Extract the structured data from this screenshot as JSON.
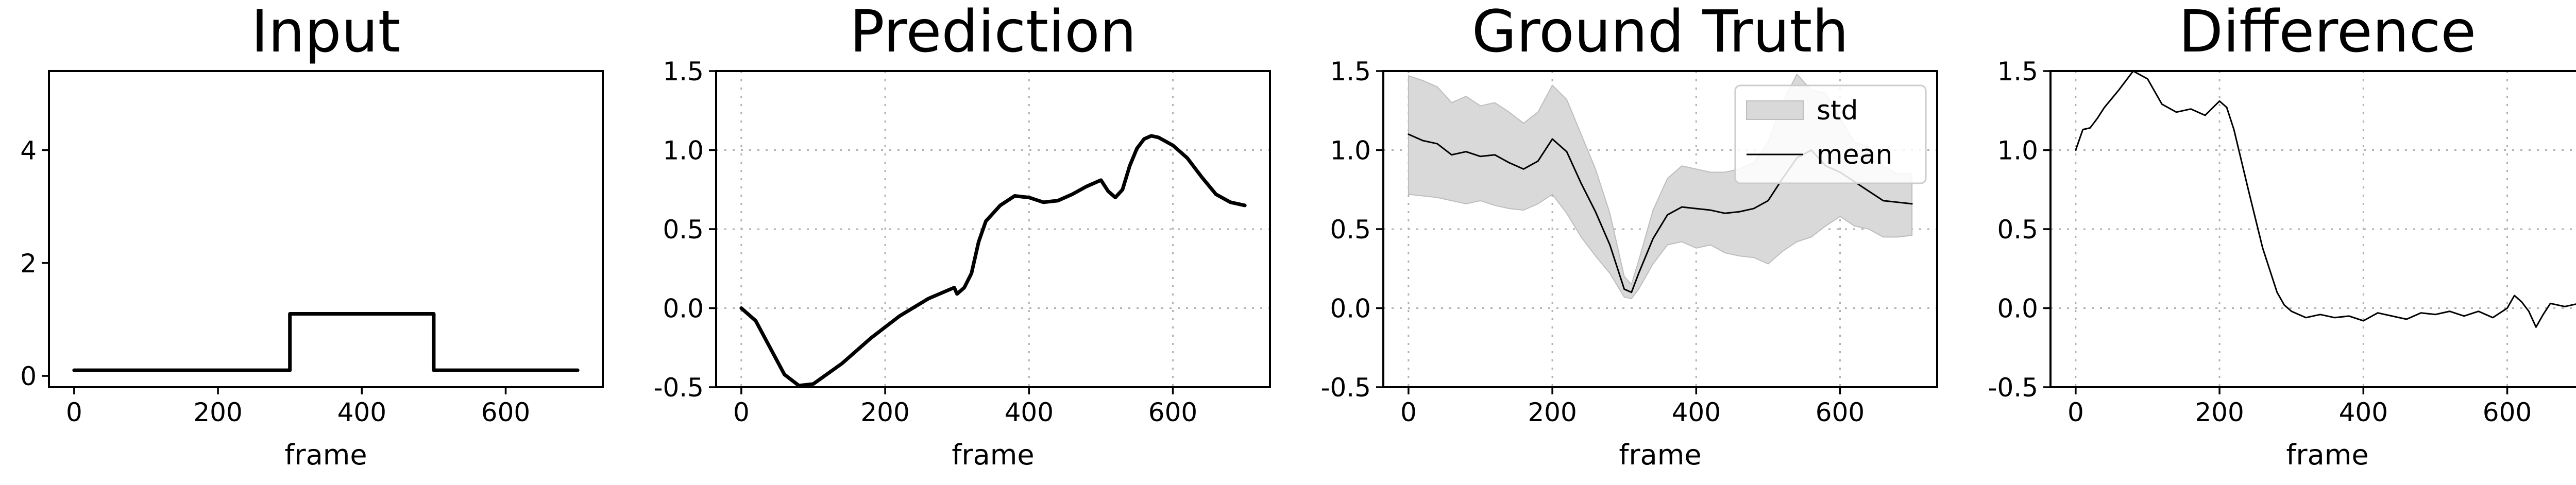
{
  "chart_data": [
    {
      "type": "line",
      "title": "Input",
      "xlabel": "frame",
      "xlim": [
        -35,
        735
      ],
      "ylim": [
        -0.2,
        5.4
      ],
      "xticks": [
        0,
        200,
        400,
        600
      ],
      "yticks": [
        0,
        2,
        4
      ],
      "grid": false,
      "series": [
        {
          "style": "thick",
          "x": [
            0,
            300,
            300,
            500,
            500,
            700
          ],
          "y": [
            0.1,
            0.1,
            1.1,
            1.1,
            0.1,
            0.1
          ]
        }
      ]
    },
    {
      "type": "line",
      "title": "Prediction",
      "xlabel": "frame",
      "xlim": [
        -35,
        735
      ],
      "ylim": [
        -0.5,
        1.5
      ],
      "xticks": [
        0,
        200,
        400,
        600
      ],
      "yticks": [
        -0.5,
        0.0,
        0.5,
        1.0,
        1.5
      ],
      "grid": true,
      "series": [
        {
          "style": "thick",
          "x": [
            0,
            20,
            40,
            60,
            80,
            100,
            140,
            180,
            220,
            260,
            296,
            300,
            310,
            320,
            330,
            340,
            360,
            380,
            400,
            420,
            440,
            460,
            480,
            500,
            510,
            520,
            530,
            540,
            550,
            560,
            570,
            580,
            600,
            620,
            640,
            660,
            680,
            700
          ],
          "y": [
            0.0,
            -0.08,
            -0.25,
            -0.42,
            -0.49,
            -0.48,
            -0.35,
            -0.19,
            -0.05,
            0.06,
            0.13,
            0.09,
            0.13,
            0.22,
            0.42,
            0.55,
            0.65,
            0.71,
            0.7,
            0.67,
            0.68,
            0.72,
            0.77,
            0.81,
            0.74,
            0.7,
            0.75,
            0.9,
            1.01,
            1.07,
            1.09,
            1.08,
            1.03,
            0.95,
            0.83,
            0.72,
            0.67,
            0.65
          ]
        }
      ]
    },
    {
      "type": "area",
      "title": "Ground Truth",
      "xlabel": "frame",
      "xlim": [
        -35,
        735
      ],
      "ylim": [
        -0.5,
        1.5
      ],
      "xticks": [
        0,
        200,
        400,
        600
      ],
      "yticks": [
        -0.5,
        0.0,
        0.5,
        1.0,
        1.5
      ],
      "grid": true,
      "legend_position": "top-right",
      "x": [
        0,
        20,
        40,
        60,
        80,
        100,
        120,
        140,
        160,
        180,
        200,
        220,
        240,
        260,
        280,
        300,
        310,
        320,
        340,
        360,
        380,
        400,
        420,
        440,
        460,
        480,
        500,
        520,
        540,
        560,
        580,
        600,
        620,
        640,
        660,
        680,
        700
      ],
      "series": [
        {
          "name": "std",
          "kind": "band",
          "color": "#d9d9d9",
          "lower": [
            0.72,
            0.71,
            0.7,
            0.68,
            0.66,
            0.68,
            0.65,
            0.63,
            0.62,
            0.66,
            0.72,
            0.6,
            0.45,
            0.33,
            0.22,
            0.07,
            0.06,
            0.12,
            0.28,
            0.4,
            0.42,
            0.38,
            0.4,
            0.35,
            0.33,
            0.32,
            0.28,
            0.36,
            0.42,
            0.45,
            0.52,
            0.58,
            0.52,
            0.5,
            0.45,
            0.45,
            0.46
          ],
          "upper": [
            1.47,
            1.44,
            1.4,
            1.3,
            1.34,
            1.28,
            1.3,
            1.24,
            1.17,
            1.24,
            1.41,
            1.32,
            1.1,
            0.88,
            0.6,
            0.2,
            0.15,
            0.3,
            0.62,
            0.82,
            0.9,
            0.88,
            0.86,
            0.86,
            0.88,
            0.92,
            1.05,
            1.3,
            1.48,
            1.38,
            1.36,
            1.2,
            1.05,
            1.02,
            0.9,
            0.85,
            0.85
          ]
        },
        {
          "name": "mean",
          "kind": "line",
          "color": "#000000",
          "y": [
            1.1,
            1.06,
            1.04,
            0.97,
            0.99,
            0.96,
            0.97,
            0.92,
            0.88,
            0.93,
            1.07,
            0.99,
            0.79,
            0.61,
            0.4,
            0.12,
            0.1,
            0.22,
            0.44,
            0.59,
            0.64,
            0.63,
            0.62,
            0.6,
            0.61,
            0.63,
            0.68,
            0.82,
            0.95,
            1.0,
            0.9,
            0.86,
            0.8,
            0.74,
            0.68,
            0.67,
            0.66
          ]
        }
      ]
    },
    {
      "type": "line",
      "title": "Difference",
      "xlabel": "frame",
      "xlim": [
        -35,
        735
      ],
      "ylim": [
        -0.5,
        1.5
      ],
      "xticks": [
        0,
        200,
        400,
        600
      ],
      "yticks": [
        -0.5,
        0.0,
        0.5,
        1.0,
        1.5
      ],
      "grid": true,
      "series": [
        {
          "style": "thin",
          "x": [
            0,
            10,
            20,
            30,
            40,
            60,
            80,
            100,
            120,
            140,
            160,
            180,
            200,
            210,
            220,
            240,
            260,
            280,
            290,
            300,
            320,
            340,
            360,
            380,
            400,
            420,
            440,
            460,
            480,
            500,
            520,
            540,
            560,
            580,
            600,
            610,
            620,
            630,
            640,
            650,
            660,
            680,
            700
          ],
          "y": [
            1.0,
            1.13,
            1.14,
            1.2,
            1.27,
            1.38,
            1.5,
            1.45,
            1.29,
            1.24,
            1.26,
            1.22,
            1.31,
            1.27,
            1.13,
            0.75,
            0.38,
            0.1,
            0.02,
            -0.02,
            -0.06,
            -0.04,
            -0.06,
            -0.05,
            -0.08,
            -0.03,
            -0.05,
            -0.07,
            -0.03,
            -0.04,
            -0.02,
            -0.05,
            -0.02,
            -0.06,
            0.0,
            0.08,
            0.04,
            -0.02,
            -0.12,
            -0.04,
            0.03,
            0.01,
            0.03
          ]
        }
      ]
    }
  ]
}
